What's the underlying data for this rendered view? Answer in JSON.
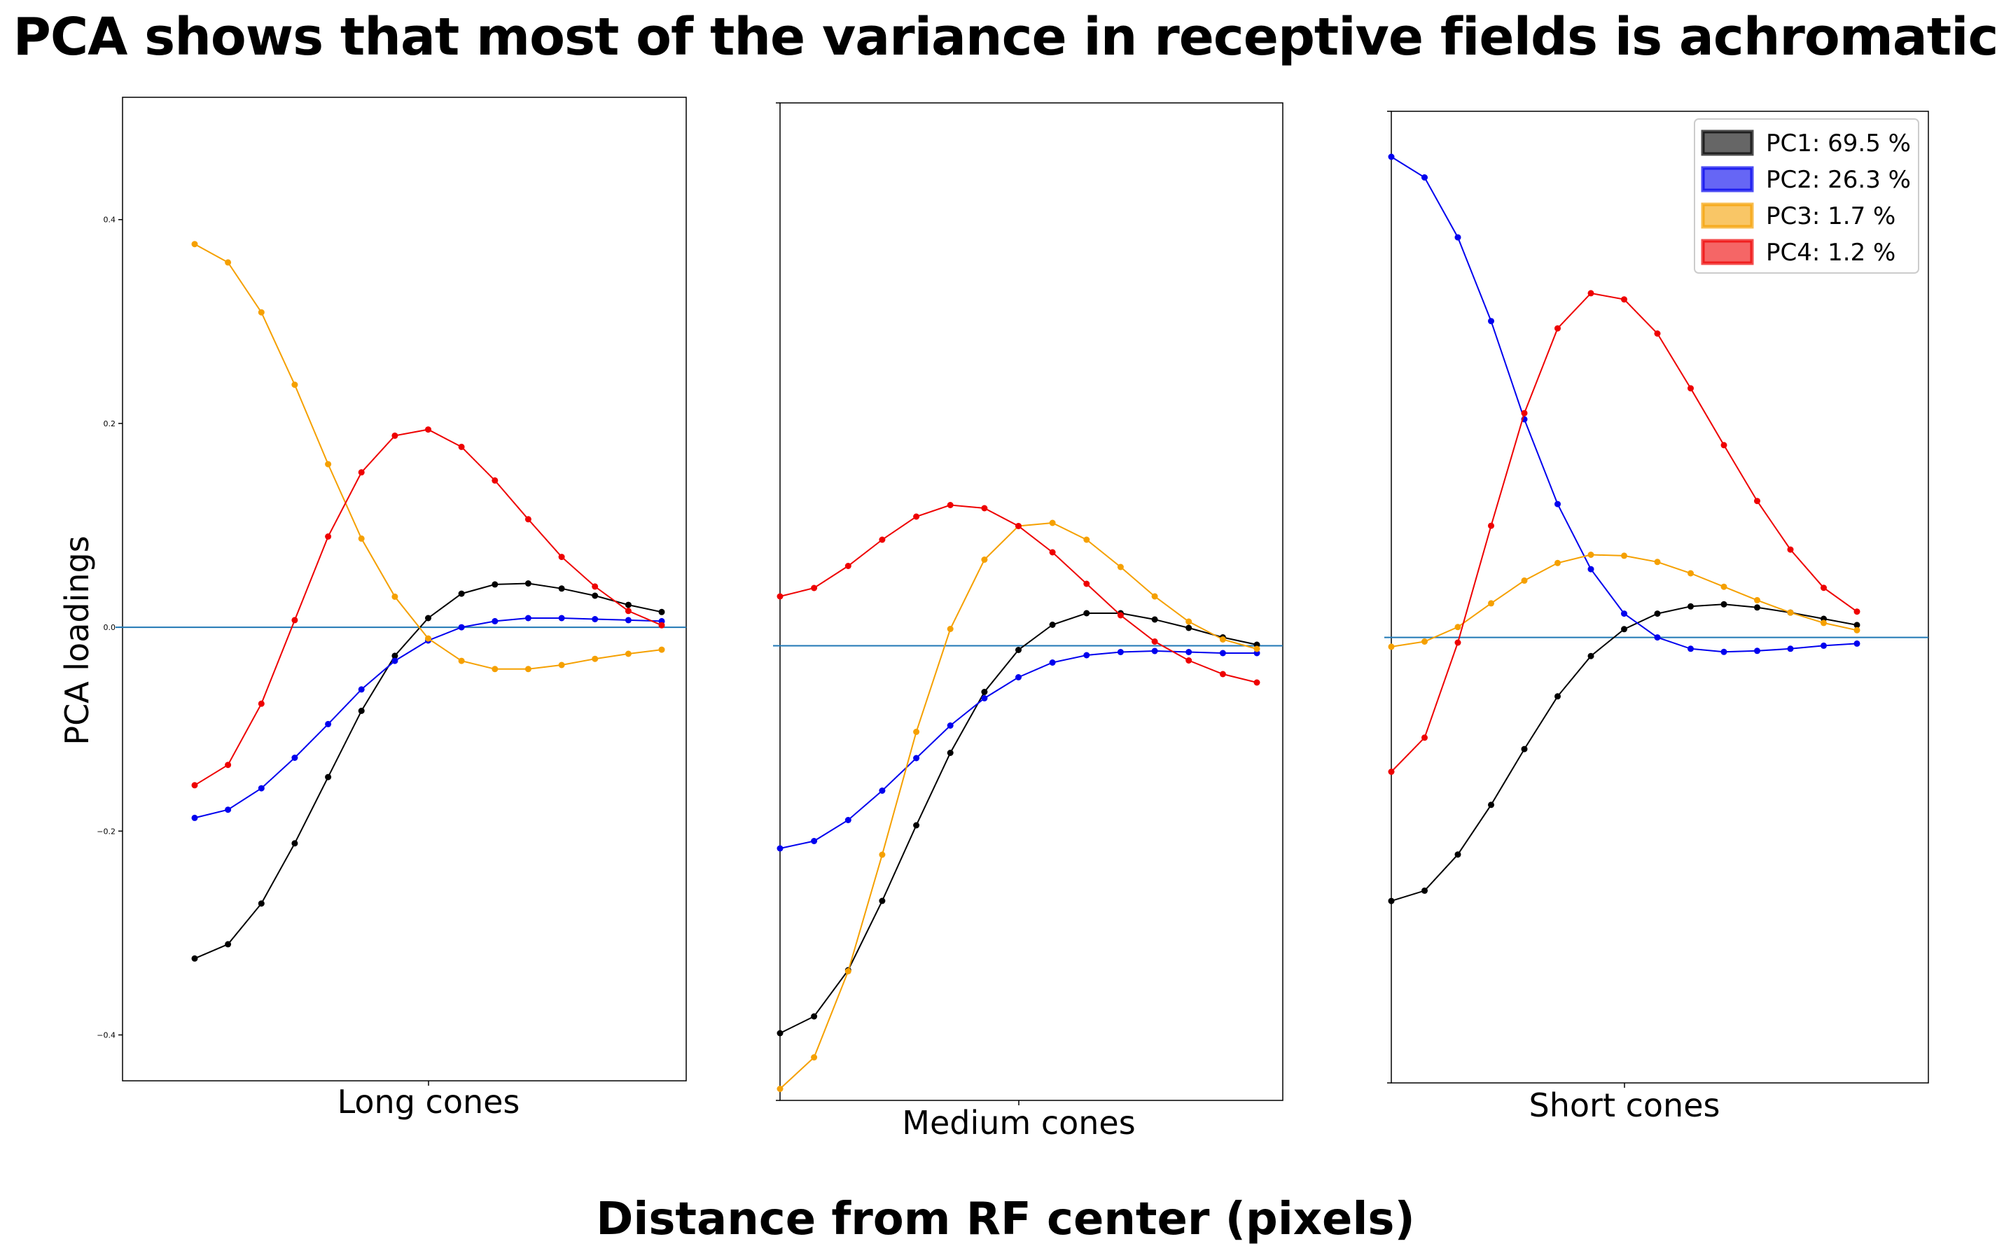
{
  "title": "PCA shows that most of the variance in receptive fields is achromatic",
  "xlabel": "Distance from RF center (pixels)",
  "ylabel": "PCA loadings",
  "colors": {
    "PC1": "#000000",
    "PC2": "#0000ee",
    "PC3": "#f5a000",
    "PC4": "#ee0000",
    "zero_line": "#1f77b4"
  },
  "legend": {
    "placement": "top-right",
    "entries": [
      "PC1: 69.5 %",
      "PC2: 26.3 %",
      "PC3: 1.7 %",
      "PC4: 1.2 %"
    ]
  },
  "chart_data": [
    {
      "type": "line",
      "panel_label": "Long cones",
      "ylim": [
        -0.445,
        0.52
      ],
      "yticks": [
        "0.4",
        "0.2",
        "0.0",
        "−0.2",
        "−0.4"
      ],
      "ytick_values": [
        0.4,
        0.2,
        0.0,
        -0.2,
        -0.4
      ],
      "x": [
        1,
        2,
        3,
        4,
        5,
        6,
        7,
        8,
        9,
        10,
        11,
        12,
        13,
        14,
        15
      ],
      "xlim": [
        -1.2,
        15.9
      ],
      "series": [
        {
          "name": "PC1",
          "values": [
            -0.325,
            -0.311,
            -0.271,
            -0.212,
            -0.147,
            -0.082,
            -0.028,
            0.009,
            0.033,
            0.042,
            0.043,
            0.038,
            0.031,
            0.022,
            0.015
          ]
        },
        {
          "name": "PC2",
          "values": [
            -0.187,
            -0.179,
            -0.158,
            -0.128,
            -0.095,
            -0.061,
            -0.033,
            -0.013,
            0.0,
            0.006,
            0.009,
            0.009,
            0.008,
            0.007,
            0.006
          ]
        },
        {
          "name": "PC3",
          "values": [
            0.376,
            0.358,
            0.309,
            0.238,
            0.16,
            0.087,
            0.03,
            -0.011,
            -0.033,
            -0.041,
            -0.041,
            -0.037,
            -0.031,
            -0.026,
            -0.022
          ]
        },
        {
          "name": "PC4",
          "values": [
            -0.155,
            -0.135,
            -0.075,
            0.007,
            0.089,
            0.152,
            0.188,
            0.194,
            0.177,
            0.144,
            0.106,
            0.069,
            0.04,
            0.016,
            0.002
          ]
        }
      ]
    },
    {
      "type": "line",
      "panel_label": "Medium cones",
      "ylim": [
        -0.433,
        0.517
      ],
      "x": [
        1,
        2,
        3,
        4,
        5,
        6,
        7,
        8,
        9,
        10,
        11,
        12,
        13,
        14,
        15
      ],
      "xlim": [
        1,
        16
      ],
      "series": [
        {
          "name": "PC1",
          "values": [
            -0.369,
            -0.353,
            -0.309,
            -0.243,
            -0.171,
            -0.102,
            -0.044,
            -0.004,
            0.02,
            0.031,
            0.031,
            0.025,
            0.017,
            0.008,
            0.001
          ]
        },
        {
          "name": "PC2",
          "values": [
            -0.193,
            -0.186,
            -0.166,
            -0.138,
            -0.107,
            -0.076,
            -0.05,
            -0.03,
            -0.016,
            -0.009,
            -0.006,
            -0.005,
            -0.006,
            -0.007,
            -0.007
          ]
        },
        {
          "name": "PC3",
          "values": [
            -0.422,
            -0.392,
            -0.31,
            -0.199,
            -0.082,
            0.016,
            0.082,
            0.114,
            0.117,
            0.101,
            0.075,
            0.047,
            0.023,
            0.006,
            -0.003
          ]
        },
        {
          "name": "PC4",
          "values": [
            0.047,
            0.055,
            0.076,
            0.101,
            0.123,
            0.134,
            0.131,
            0.114,
            0.089,
            0.059,
            0.029,
            0.004,
            -0.014,
            -0.027,
            -0.035
          ]
        }
      ]
    },
    {
      "type": "line",
      "panel_label": "Short cones",
      "ylim": [
        -0.431,
        0.509
      ],
      "x": [
        1,
        2,
        3,
        4,
        5,
        6,
        7,
        8,
        9,
        10,
        11,
        12,
        13,
        14,
        15
      ],
      "xlim": [
        1,
        18.2
      ],
      "series": [
        {
          "name": "PC1",
          "values": [
            -0.255,
            -0.245,
            -0.21,
            -0.162,
            -0.108,
            -0.057,
            -0.018,
            0.008,
            0.023,
            0.03,
            0.032,
            0.029,
            0.024,
            0.018,
            0.012
          ]
        },
        {
          "name": "PC2",
          "values": [
            0.465,
            0.445,
            0.387,
            0.306,
            0.211,
            0.129,
            0.066,
            0.023,
            0.0,
            -0.011,
            -0.014,
            -0.013,
            -0.011,
            -0.008,
            -0.006
          ]
        },
        {
          "name": "PC3",
          "values": [
            -0.009,
            -0.004,
            0.01,
            0.033,
            0.055,
            0.072,
            0.08,
            0.079,
            0.073,
            0.062,
            0.049,
            0.036,
            0.024,
            0.014,
            0.007
          ]
        },
        {
          "name": "PC4",
          "values": [
            -0.13,
            -0.097,
            -0.005,
            0.108,
            0.217,
            0.299,
            0.333,
            0.327,
            0.294,
            0.241,
            0.186,
            0.132,
            0.085,
            0.048,
            0.025
          ]
        }
      ]
    }
  ]
}
